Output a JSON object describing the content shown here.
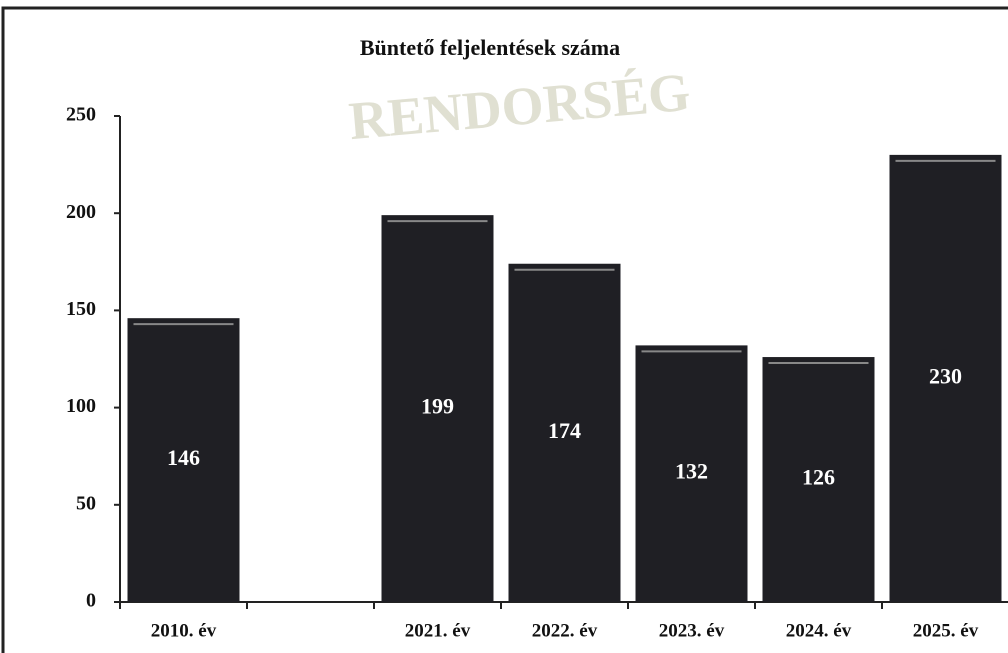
{
  "chart_data": {
    "type": "bar",
    "title": "Büntető feljelentések száma",
    "watermark": "RENDORSÉG",
    "categories": [
      "2010. év",
      null,
      "2021. év",
      "2022. év",
      "2023. év",
      "2024. év",
      "2025. év"
    ],
    "values": [
      146,
      null,
      199,
      174,
      132,
      126,
      230
    ],
    "color": "#1f1f24",
    "ylim": [
      0,
      250
    ],
    "yticks": [
      0,
      50,
      100,
      150,
      200,
      250
    ],
    "grid": false
  }
}
